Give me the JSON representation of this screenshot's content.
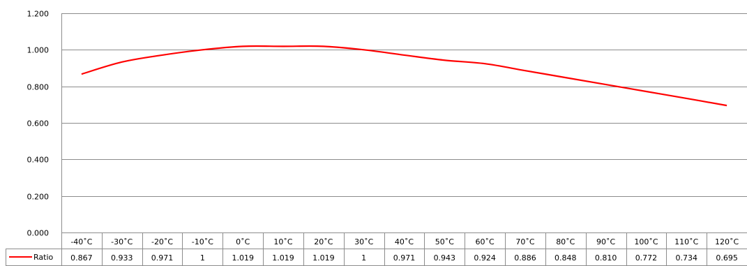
{
  "chart_data": {
    "type": "line",
    "categories": [
      "-40˚C",
      "-30˚C",
      "-20˚C",
      "-10˚C",
      "0˚C",
      "10˚C",
      "20˚C",
      "30˚C",
      "40˚C",
      "50˚C",
      "60˚C",
      "70˚C",
      "80˚C",
      "90˚C",
      "100˚C",
      "110˚C",
      "120˚C"
    ],
    "series": [
      {
        "name": "Ratio",
        "color": "#ff0000",
        "values": [
          0.867,
          0.933,
          0.971,
          1,
          1.019,
          1.019,
          1.019,
          1,
          0.971,
          0.943,
          0.924,
          0.886,
          0.848,
          0.81,
          0.772,
          0.734,
          0.695
        ],
        "value_labels": [
          "0.867",
          "0.933",
          "0.971",
          "1",
          "1.019",
          "1.019",
          "1.019",
          "1",
          "0.971",
          "0.943",
          "0.924",
          "0.886",
          "0.848",
          "0.810",
          "0.772",
          "0.734",
          "0.695"
        ]
      }
    ],
    "y_ticks": [
      "0.000",
      "0.200",
      "0.400",
      "0.600",
      "0.800",
      "1.000",
      "1.200"
    ],
    "ylim": [
      0,
      1.2
    ],
    "grid": true,
    "data_table": true,
    "title": "",
    "xlabel": "",
    "ylabel": ""
  }
}
